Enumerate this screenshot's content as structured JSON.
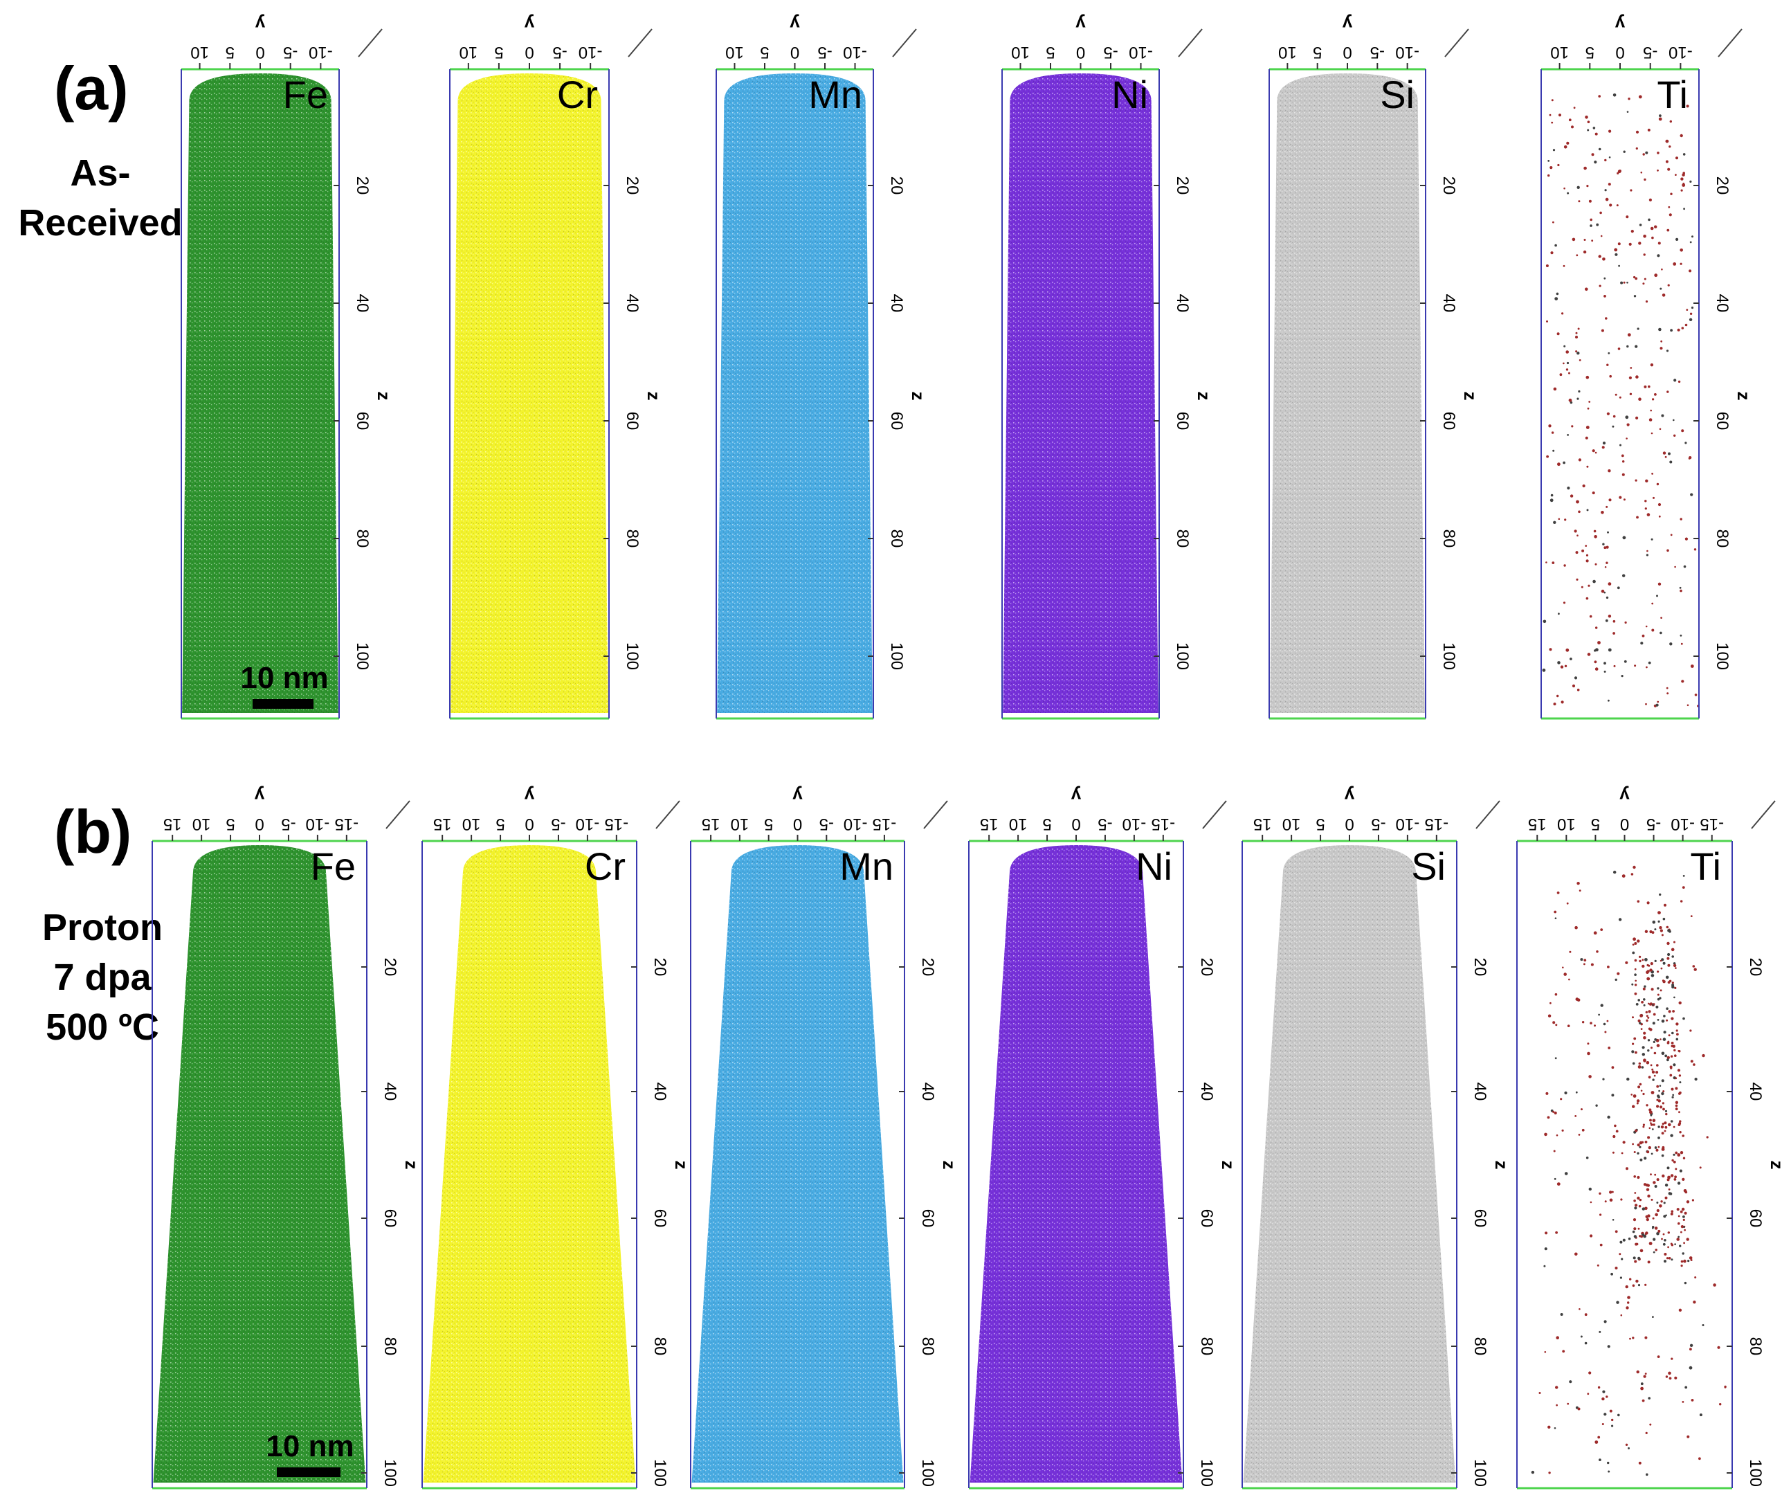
{
  "colors": {
    "Fe": "#1c8a1c",
    "Cr": "#f2f21a",
    "Mn": "#3aa4df",
    "Ni": "#6a1fd6",
    "Si": "#9a9a9a",
    "Ti": "#9e2a2a",
    "frame_side": "#3a3ab0",
    "frame_end": "#4ed44e"
  },
  "rows": [
    {
      "panel_label": "(a)",
      "condition_lines": [
        "As-",
        "Received"
      ],
      "scale_bar": "10 nm",
      "y_axis_name": "y",
      "z_axis_name": "z",
      "y_ticks": [
        "10",
        "5",
        "0",
        "-5",
        "-10"
      ],
      "z_ticks": [
        "20",
        "40",
        "60",
        "80",
        "100"
      ],
      "panels": [
        {
          "element": "Fe",
          "label": "Fe"
        },
        {
          "element": "Cr",
          "label": "Cr"
        },
        {
          "element": "Mn",
          "label": "Mn"
        },
        {
          "element": "Ni",
          "label": "Ni"
        },
        {
          "element": "Si",
          "label": "Si"
        },
        {
          "element": "Ti",
          "label": "Ti"
        }
      ]
    },
    {
      "panel_label": "(b)",
      "condition_lines": [
        "Proton",
        "7 dpa",
        "500 ºC"
      ],
      "scale_bar": "10 nm",
      "y_axis_name": "y",
      "z_axis_name": "z",
      "y_ticks": [
        "15",
        "10",
        "5",
        "0",
        "-5",
        "-10",
        "-15"
      ],
      "z_ticks": [
        "20",
        "40",
        "60",
        "80",
        "100"
      ],
      "panels": [
        {
          "element": "Fe",
          "label": "Fe"
        },
        {
          "element": "Cr",
          "label": "Cr"
        },
        {
          "element": "Mn",
          "label": "Mn"
        },
        {
          "element": "Ni",
          "label": "Ni"
        },
        {
          "element": "Si",
          "label": "Si"
        },
        {
          "element": "Ti",
          "label": "Ti"
        }
      ]
    }
  ]
}
